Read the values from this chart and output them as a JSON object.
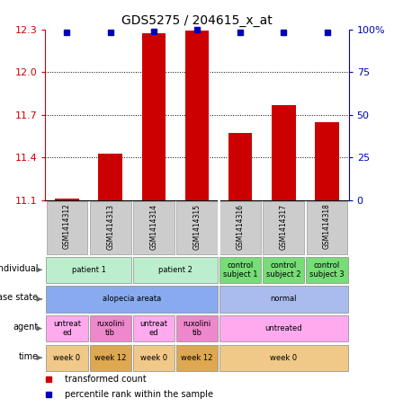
{
  "title": "GDS5275 / 204615_x_at",
  "samples": [
    "GSM1414312",
    "GSM1414313",
    "GSM1414314",
    "GSM1414315",
    "GSM1414316",
    "GSM1414317",
    "GSM1414318"
  ],
  "bar_values": [
    11.11,
    11.43,
    12.27,
    12.29,
    11.57,
    11.77,
    11.65
  ],
  "percentile_values": [
    98,
    98,
    99,
    100,
    98,
    98,
    98
  ],
  "ylim_left": [
    11.1,
    12.3
  ],
  "ylim_right": [
    0,
    100
  ],
  "yticks_left": [
    11.1,
    11.4,
    11.7,
    12.0,
    12.3
  ],
  "yticks_right": [
    0,
    25,
    50,
    75,
    100
  ],
  "bar_color": "#cc0000",
  "dot_color": "#0000bb",
  "annotation_rows": [
    {
      "label": "individual",
      "cells": [
        {
          "text": "patient 1",
          "colspan": 2,
          "color": "#bbeecc"
        },
        {
          "text": "patient 2",
          "colspan": 2,
          "color": "#bbeecc"
        },
        {
          "text": "control\nsubject 1",
          "colspan": 1,
          "color": "#77dd77"
        },
        {
          "text": "control\nsubject 2",
          "colspan": 1,
          "color": "#77dd77"
        },
        {
          "text": "control\nsubject 3",
          "colspan": 1,
          "color": "#77dd77"
        }
      ]
    },
    {
      "label": "disease state",
      "cells": [
        {
          "text": "alopecia areata",
          "colspan": 4,
          "color": "#88aaee"
        },
        {
          "text": "normal",
          "colspan": 3,
          "color": "#aabbee"
        }
      ]
    },
    {
      "label": "agent",
      "cells": [
        {
          "text": "untreat\ned",
          "colspan": 1,
          "color": "#ffaaee"
        },
        {
          "text": "ruxolini\ntib",
          "colspan": 1,
          "color": "#ee88cc"
        },
        {
          "text": "untreat\ned",
          "colspan": 1,
          "color": "#ffaaee"
        },
        {
          "text": "ruxolini\ntib",
          "colspan": 1,
          "color": "#ee88cc"
        },
        {
          "text": "untreated",
          "colspan": 3,
          "color": "#ffaaee"
        }
      ]
    },
    {
      "label": "time",
      "cells": [
        {
          "text": "week 0",
          "colspan": 1,
          "color": "#f0c888"
        },
        {
          "text": "week 12",
          "colspan": 1,
          "color": "#dda850"
        },
        {
          "text": "week 0",
          "colspan": 1,
          "color": "#f0c888"
        },
        {
          "text": "week 12",
          "colspan": 1,
          "color": "#dda850"
        },
        {
          "text": "week 0",
          "colspan": 3,
          "color": "#f0c888"
        }
      ]
    }
  ],
  "legend": [
    {
      "color": "#cc0000",
      "label": "transformed count"
    },
    {
      "color": "#0000bb",
      "label": "percentile rank within the sample"
    }
  ]
}
